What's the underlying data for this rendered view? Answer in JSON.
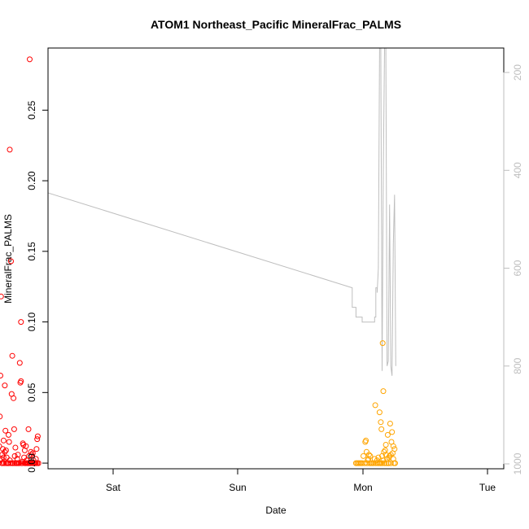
{
  "chart_data": {
    "type": "scatter",
    "title": "ATOM1 Northeast_Pacific MineralFrac_PALMS",
    "xlabel": "Date",
    "ylabel": "MineralFrac_PALMS",
    "x_tick_labels": [
      "Sat",
      "Sun",
      "Mon",
      "Tue"
    ],
    "y_ticks": [
      0.0,
      0.05,
      0.1,
      0.15,
      0.2,
      0.25
    ],
    "y_tick_labels": [
      "0.00",
      "0.05",
      "0.10",
      "0.15",
      "0.20",
      "0.25"
    ],
    "ylim": [
      -0.004,
      0.294
    ],
    "secondary_axis": {
      "ticks": [
        200,
        400,
        600,
        800,
        1000
      ],
      "tick_labels": [
        "200",
        "400",
        "600",
        "800",
        "1000"
      ],
      "range": [
        1010,
        150
      ],
      "color": "#bebebe"
    },
    "series": [
      {
        "color": "#ff0000",
        "points": [
          [
            0.04,
            0.003
          ],
          [
            0.05,
            0.0
          ],
          [
            0.06,
            0.001
          ],
          [
            0.07,
            0.0
          ],
          [
            0.08,
            0.0
          ],
          [
            0.085,
            0.012
          ],
          [
            0.09,
            0.033
          ],
          [
            0.095,
            0.062
          ],
          [
            0.1,
            0.118
          ],
          [
            0.1,
            0.003
          ],
          [
            0.105,
            0.0
          ],
          [
            0.11,
            0.006
          ],
          [
            0.115,
            0.01
          ],
          [
            0.12,
            0.016
          ],
          [
            0.125,
            0.0
          ],
          [
            0.13,
            0.055
          ],
          [
            0.13,
            0.008
          ],
          [
            0.135,
            0.023
          ],
          [
            0.14,
            0.0
          ],
          [
            0.145,
            0.004
          ],
          [
            0.15,
            0.0
          ],
          [
            0.155,
            0.0
          ],
          [
            0.16,
            0.02
          ],
          [
            0.165,
            0.015
          ],
          [
            0.17,
            0.222
          ],
          [
            0.175,
            0.0
          ],
          [
            0.18,
            0.143
          ],
          [
            0.185,
            0.049
          ],
          [
            0.19,
            0.076
          ],
          [
            0.195,
            0.0
          ],
          [
            0.2,
            0.046
          ],
          [
            0.205,
            0.024
          ],
          [
            0.21,
            0.0
          ],
          [
            0.215,
            0.011
          ],
          [
            0.22,
            0.0
          ],
          [
            0.225,
            0.0
          ],
          [
            0.23,
            0.003
          ],
          [
            0.235,
            0.006
          ],
          [
            0.24,
            0.0
          ],
          [
            0.245,
            0.0
          ],
          [
            0.25,
            0.071
          ],
          [
            0.255,
            0.057
          ],
          [
            0.26,
            0.1
          ],
          [
            0.265,
            0.0
          ],
          [
            0.27,
            0.0
          ],
          [
            0.275,
            0.014
          ],
          [
            0.28,
            0.013
          ],
          [
            0.285,
            0.004
          ],
          [
            0.29,
            0.009
          ],
          [
            0.295,
            0.0
          ],
          [
            0.3,
            0.012
          ],
          [
            0.305,
            0.002
          ],
          [
            0.31,
            0.0
          ],
          [
            0.315,
            0.0
          ],
          [
            0.32,
            0.024
          ],
          [
            0.325,
            0.005
          ],
          [
            0.33,
            0.286
          ],
          [
            0.335,
            0.0
          ],
          [
            0.34,
            0.008
          ],
          [
            0.345,
            0.006
          ],
          [
            0.35,
            0.0
          ],
          [
            0.355,
            0.007
          ],
          [
            0.36,
            0.0
          ],
          [
            0.365,
            0.0
          ],
          [
            0.37,
            0.0
          ],
          [
            0.375,
            0.0
          ],
          [
            0.38,
            0.003
          ],
          [
            0.385,
            0.01
          ],
          [
            0.39,
            0.017
          ],
          [
            0.395,
            0.019
          ],
          [
            0.4,
            0.0
          ],
          [
            0.06,
            0.0
          ],
          [
            0.09,
            0.002
          ],
          [
            0.11,
            0.0
          ],
          [
            0.12,
            0.004
          ],
          [
            0.14,
            0.009
          ],
          [
            0.16,
            0.0
          ],
          [
            0.17,
            0.002
          ],
          [
            0.19,
            0.0
          ],
          [
            0.21,
            0.005
          ],
          [
            0.23,
            0.0
          ],
          [
            0.26,
            0.058
          ],
          [
            0.27,
            0.001
          ],
          [
            0.29,
            0.0
          ],
          [
            0.3,
            0.0
          ],
          [
            0.32,
            0.0
          ],
          [
            0.34,
            0.0
          ],
          [
            0.36,
            0.002
          ],
          [
            0.38,
            0.0
          ],
          [
            0.39,
            0.0
          ]
        ]
      },
      {
        "color": "#ffa500",
        "points": [
          [
            2.95,
            0.0
          ],
          [
            2.96,
            0.0
          ],
          [
            2.97,
            0.0
          ],
          [
            2.98,
            0.0
          ],
          [
            2.99,
            0.0
          ],
          [
            3.0,
            0.0
          ],
          [
            3.01,
            0.005
          ],
          [
            3.02,
            0.0
          ],
          [
            3.025,
            0.015
          ],
          [
            3.03,
            0.016
          ],
          [
            3.035,
            0.008
          ],
          [
            3.04,
            0.0
          ],
          [
            3.045,
            0.002
          ],
          [
            3.05,
            0.003
          ],
          [
            3.055,
            0.006
          ],
          [
            3.06,
            0.0
          ],
          [
            3.065,
            0.005
          ],
          [
            3.07,
            0.0
          ],
          [
            3.08,
            0.0
          ],
          [
            3.09,
            0.0
          ],
          [
            3.1,
            0.003
          ],
          [
            3.105,
            0.041
          ],
          [
            3.11,
            0.0
          ],
          [
            3.12,
            0.002
          ],
          [
            3.125,
            0.0
          ],
          [
            3.13,
            0.004
          ],
          [
            3.135,
            0.0
          ],
          [
            3.14,
            0.036
          ],
          [
            3.145,
            0.0
          ],
          [
            3.15,
            0.029
          ],
          [
            3.155,
            0.024
          ],
          [
            3.16,
            0.005
          ],
          [
            3.165,
            0.085
          ],
          [
            3.17,
            0.051
          ],
          [
            3.175,
            0.008
          ],
          [
            3.18,
            0.0
          ],
          [
            3.185,
            0.009
          ],
          [
            3.19,
            0.013
          ],
          [
            3.195,
            0.0
          ],
          [
            3.2,
            0.003
          ],
          [
            3.205,
            0.02
          ],
          [
            3.21,
            0.0
          ],
          [
            3.215,
            0.004
          ],
          [
            3.22,
            0.005
          ],
          [
            3.225,
            0.028
          ],
          [
            3.23,
            0.0
          ],
          [
            3.235,
            0.015
          ],
          [
            3.24,
            0.022
          ],
          [
            3.245,
            0.007
          ],
          [
            3.25,
            0.012
          ],
          [
            3.255,
            0.0
          ],
          [
            3.26,
            0.01
          ],
          [
            3.265,
            0.0
          ],
          [
            3.15,
            0.0
          ],
          [
            3.16,
            0.0
          ],
          [
            3.17,
            0.002
          ],
          [
            3.19,
            0.006
          ],
          [
            3.21,
            0.0
          ],
          [
            3.23,
            0.006
          ],
          [
            3.25,
            0.003
          ]
        ]
      }
    ],
    "altitude_line": {
      "color": "#bebebe",
      "points": [
        [
          0.05,
          480
        ],
        [
          0.06,
          720
        ],
        [
          0.07,
          730
        ],
        [
          0.08,
          730
        ],
        [
          0.09,
          150
        ],
        [
          0.1,
          150
        ],
        [
          0.11,
          730
        ],
        [
          0.12,
          400
        ],
        [
          0.13,
          150
        ],
        [
          0.14,
          150
        ],
        [
          0.15,
          700
        ],
        [
          0.16,
          780
        ],
        [
          0.17,
          150
        ],
        [
          0.18,
          150
        ],
        [
          0.19,
          700
        ],
        [
          0.2,
          760
        ],
        [
          0.21,
          150
        ],
        [
          0.22,
          150
        ],
        [
          0.23,
          810
        ],
        [
          0.24,
          150
        ],
        [
          0.25,
          150
        ],
        [
          0.26,
          840
        ],
        [
          0.27,
          150
        ],
        [
          0.28,
          150
        ],
        [
          0.29,
          790
        ],
        [
          0.3,
          500
        ],
        [
          0.31,
          150
        ],
        [
          0.32,
          150
        ],
        [
          0.33,
          860
        ],
        [
          0.34,
          150
        ],
        [
          0.35,
          150
        ],
        [
          0.36,
          830
        ],
        [
          0.37,
          830
        ],
        [
          0.38,
          830
        ],
        [
          0.39,
          830
        ],
        [
          0.4,
          440
        ],
        [
          2.92,
          640
        ],
        [
          2.92,
          680
        ],
        [
          2.93,
          680
        ],
        [
          2.95,
          680
        ],
        [
          2.95,
          700
        ],
        [
          2.97,
          700
        ],
        [
          3.0,
          700
        ],
        [
          3.0,
          710
        ],
        [
          3.05,
          710
        ],
        [
          3.1,
          710
        ],
        [
          3.1,
          700
        ],
        [
          3.11,
          700
        ],
        [
          3.11,
          640
        ],
        [
          3.12,
          640
        ],
        [
          3.12,
          650
        ],
        [
          3.13,
          600
        ],
        [
          3.14,
          150
        ],
        [
          3.15,
          150
        ],
        [
          3.16,
          810
        ],
        [
          3.17,
          400
        ],
        [
          3.18,
          150
        ],
        [
          3.19,
          150
        ],
        [
          3.2,
          800
        ],
        [
          3.21,
          790
        ],
        [
          3.22,
          470
        ],
        [
          3.23,
          800
        ],
        [
          3.24,
          820
        ],
        [
          3.25,
          550
        ],
        [
          3.26,
          450
        ],
        [
          3.27,
          800
        ]
      ]
    }
  }
}
